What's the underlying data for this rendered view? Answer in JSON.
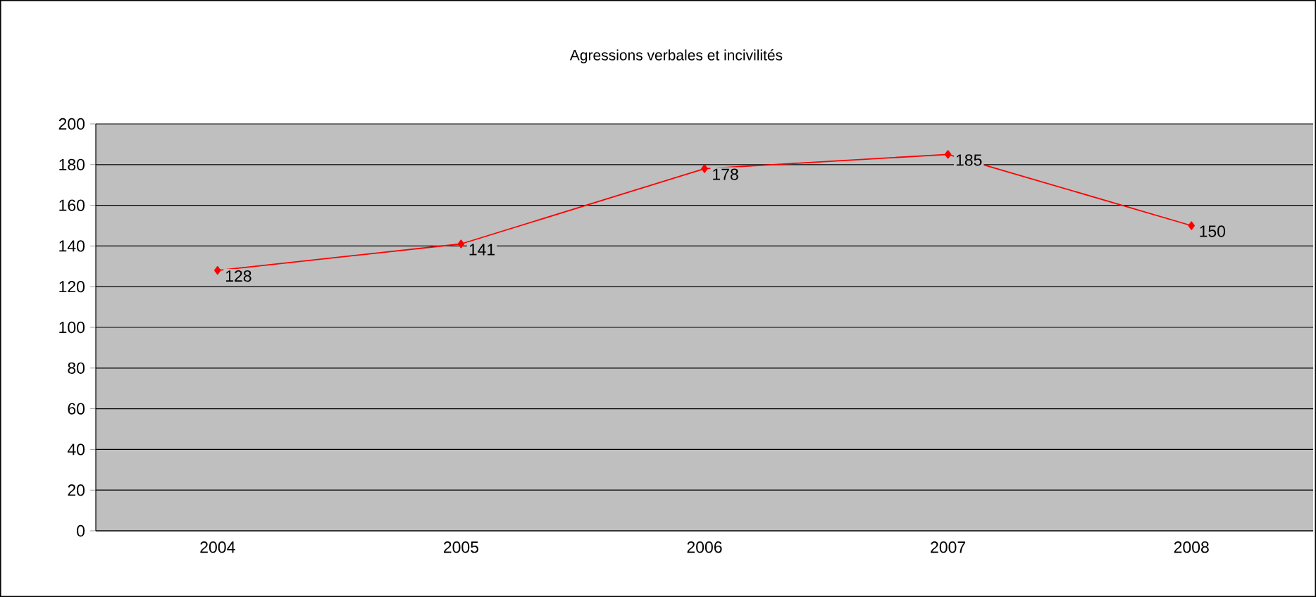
{
  "chart_data": {
    "type": "line",
    "title": "Agressions verbales et incivilités",
    "categories": [
      "2004",
      "2005",
      "2006",
      "2007",
      "2008"
    ],
    "series": [
      {
        "color": "#ff0000",
        "values": [
          128,
          141,
          178,
          185,
          150
        ]
      }
    ],
    "ylim": [
      0,
      200
    ],
    "yticks": [
      0,
      20,
      40,
      60,
      80,
      100,
      120,
      140,
      160,
      180,
      200
    ],
    "grid": "y",
    "marker": "diamond",
    "line_style": "solid",
    "data_labels": true
  }
}
